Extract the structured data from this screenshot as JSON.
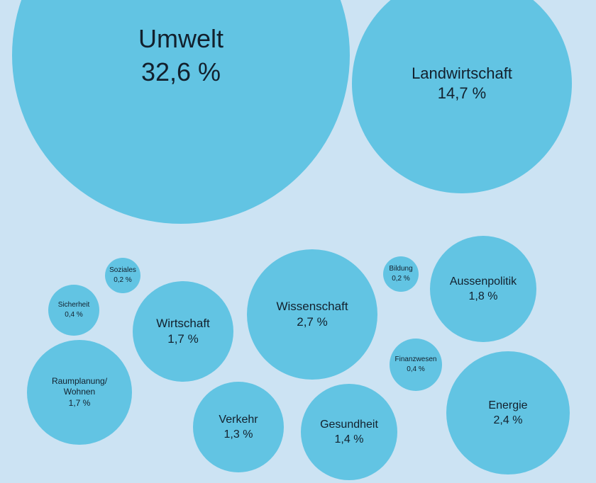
{
  "chart_data": {
    "type": "bubble",
    "bubble_color": "#62c4e3",
    "background_color": "#cce3f3",
    "unit": "%",
    "items": [
      {
        "label": "Umwelt",
        "value": 32.6,
        "value_label": "32,6 %"
      },
      {
        "label": "Landwirtschaft",
        "value": 14.7,
        "value_label": "14,7 %"
      },
      {
        "label": "Soziales",
        "value": 0.2,
        "value_label": "0,2 %"
      },
      {
        "label": "Sicherheit",
        "value": 0.4,
        "value_label": "0,4 %"
      },
      {
        "label": "Wirtschaft",
        "value": 1.7,
        "value_label": "1,7 %"
      },
      {
        "label": "Raumplanung/\nWohnen",
        "value": 1.7,
        "value_label": "1,7 %"
      },
      {
        "label": "Wissenschaft",
        "value": 2.7,
        "value_label": "2,7 %"
      },
      {
        "label": "Bildung",
        "value": 0.2,
        "value_label": "0,2 %"
      },
      {
        "label": "Aussenpolitik",
        "value": 1.8,
        "value_label": "1,8 %"
      },
      {
        "label": "Finanzwesen",
        "value": 0.4,
        "value_label": "0,4 %"
      },
      {
        "label": "Verkehr",
        "value": 1.3,
        "value_label": "1,3 %"
      },
      {
        "label": "Gesundheit",
        "value": 1.4,
        "value_label": "1,4 %"
      },
      {
        "label": "Energie",
        "value": 2.4,
        "value_label": "2,4 %"
      }
    ]
  }
}
